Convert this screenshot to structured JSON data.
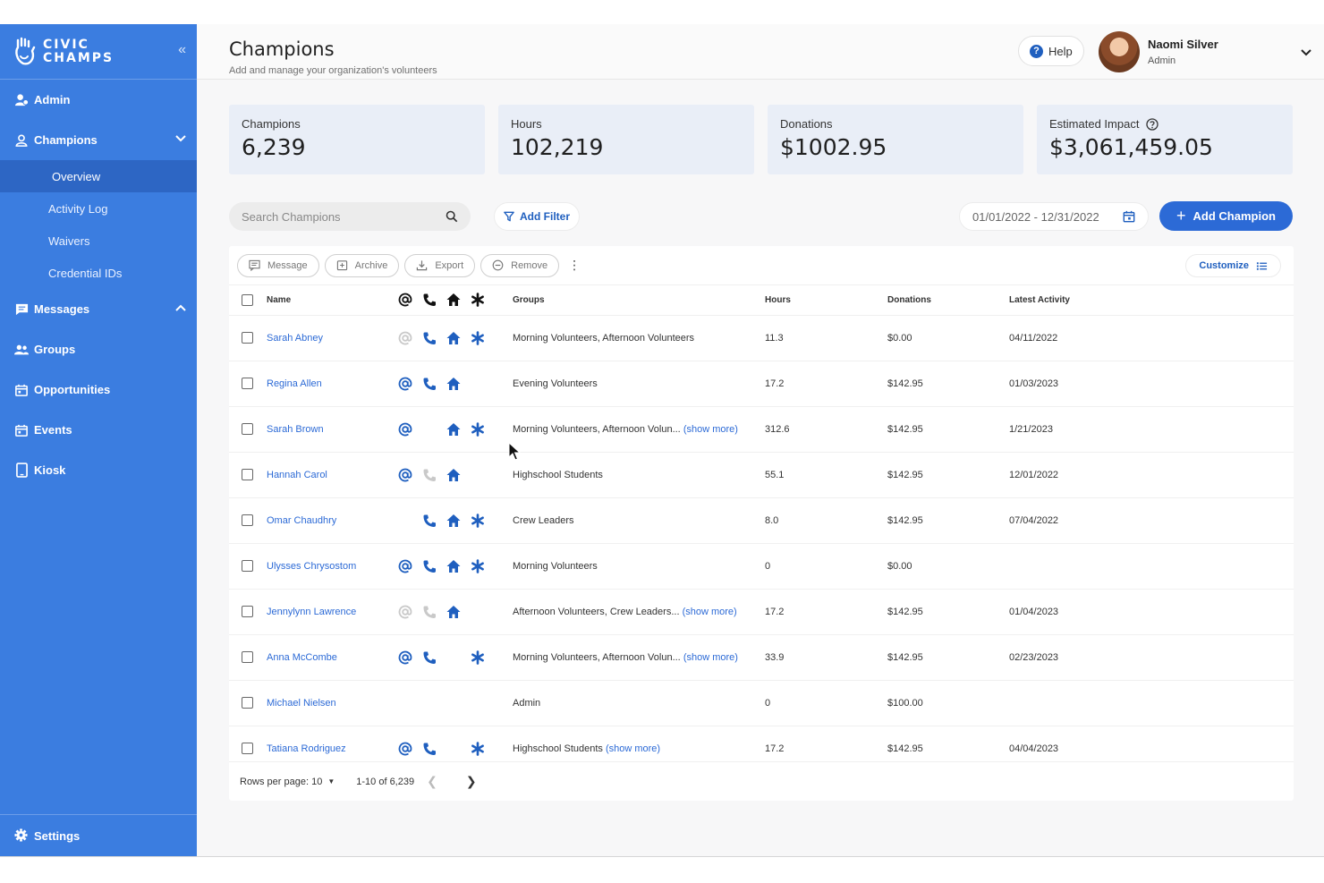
{
  "brand": {
    "line1": "CIVIC",
    "line2": "CHAMPS"
  },
  "sidebar": {
    "items": [
      {
        "label": "Admin",
        "icon": "admin-icon"
      },
      {
        "label": "Champions",
        "icon": "person-icon",
        "expanded": true
      },
      {
        "label": "Messages",
        "icon": "message-icon"
      },
      {
        "label": "Groups",
        "icon": "groups-icon"
      },
      {
        "label": "Opportunities",
        "icon": "calendar-icon"
      },
      {
        "label": "Events",
        "icon": "calendar-icon"
      },
      {
        "label": "Kiosk",
        "icon": "tablet-icon"
      }
    ],
    "champions_sub": [
      "Overview",
      "Activity Log",
      "Waivers",
      "Credential IDs"
    ],
    "settings": "Settings"
  },
  "header": {
    "title": "Champions",
    "subtitle": "Add and manage your organization's volunteers",
    "help": "Help",
    "user_name": "Naomi Silver",
    "user_role": "Admin"
  },
  "stats": [
    {
      "label": "Champions",
      "value": "6,239"
    },
    {
      "label": "Hours",
      "value": "102,219"
    },
    {
      "label": "Donations",
      "value": "$1002.95"
    },
    {
      "label": "Estimated Impact",
      "value": "$3,061,459.05"
    }
  ],
  "toolbar": {
    "search_placeholder": "Search Champions",
    "add_filter": "Add Filter",
    "date_range": "01/01/2022 - 12/31/2022",
    "add_champion": "Add Champion"
  },
  "actions": {
    "message": "Message",
    "archive": "Archive",
    "export": "Export",
    "remove": "Remove",
    "customize": "Customize"
  },
  "table": {
    "headers": {
      "name": "Name",
      "groups": "Groups",
      "hours": "Hours",
      "donations": "Donations",
      "latest": "Latest Activity"
    },
    "rows": [
      {
        "name": "Sarah Abney",
        "email": "disabled",
        "phone": "on",
        "home": "on",
        "star": "on",
        "groups": "Morning Volunteers, Afternoon Volunteers",
        "more": "",
        "hours": "11.3",
        "donations": "$0.00",
        "latest": "04/11/2022"
      },
      {
        "name": "Regina Allen",
        "email": "on",
        "phone": "on",
        "home": "on",
        "star": "none",
        "groups": "Evening Volunteers",
        "more": "",
        "hours": "17.2",
        "donations": "$142.95",
        "latest": "01/03/2023"
      },
      {
        "name": "Sarah Brown",
        "email": "on",
        "phone": "none",
        "home": "on",
        "star": "on",
        "groups": "Morning Volunteers, Afternoon Volun...",
        "more": "(show more)",
        "hours": "312.6",
        "donations": "$142.95",
        "latest": "1/21/2023"
      },
      {
        "name": "Hannah Carol",
        "email": "on",
        "phone": "disabled",
        "home": "on",
        "star": "none",
        "groups": "Highschool Students",
        "more": "",
        "hours": "55.1",
        "donations": "$142.95",
        "latest": "12/01/2022"
      },
      {
        "name": "Omar Chaudhry",
        "email": "none",
        "phone": "on",
        "home": "on",
        "star": "on",
        "groups": "Crew Leaders",
        "more": "",
        "hours": "8.0",
        "donations": "$142.95",
        "latest": "07/04/2022"
      },
      {
        "name": "Ulysses Chrysostom",
        "email": "on",
        "phone": "on",
        "home": "on",
        "star": "on",
        "groups": "Morning Volunteers",
        "more": "",
        "hours": "0",
        "donations": "$0.00",
        "latest": ""
      },
      {
        "name": "Jennylynn Lawrence",
        "email": "disabled",
        "phone": "disabled",
        "home": "on",
        "star": "none",
        "groups": "Afternoon Volunteers, Crew Leaders...",
        "more": "(show more)",
        "hours": "17.2",
        "donations": "$142.95",
        "latest": "01/04/2023"
      },
      {
        "name": "Anna McCombe",
        "email": "on",
        "phone": "on",
        "home": "none",
        "star": "on",
        "groups": "Morning Volunteers, Afternoon Volun...",
        "more": "(show more)",
        "hours": "33.9",
        "donations": "$142.95",
        "latest": "02/23/2023"
      },
      {
        "name": "Michael Nielsen",
        "email": "none",
        "phone": "none",
        "home": "none",
        "star": "none",
        "groups": "Admin",
        "more": "",
        "hours": "0",
        "donations": "$100.00",
        "latest": ""
      },
      {
        "name": "Tatiana Rodriguez",
        "email": "on",
        "phone": "on",
        "home": "none",
        "star": "on",
        "groups": "Highschool Students",
        "more": "(show more)",
        "hours": "17.2",
        "donations": "$142.95",
        "latest": "04/04/2023"
      }
    ]
  },
  "pagination": {
    "rows_per_page": "Rows per page: 10",
    "range": "1-10 of 6,239"
  },
  "colors": {
    "sidebar": "#3b7de0",
    "accent": "#2c6ad6",
    "icon_active": "#1f5fbf",
    "icon_disabled": "#c9c9c9"
  }
}
